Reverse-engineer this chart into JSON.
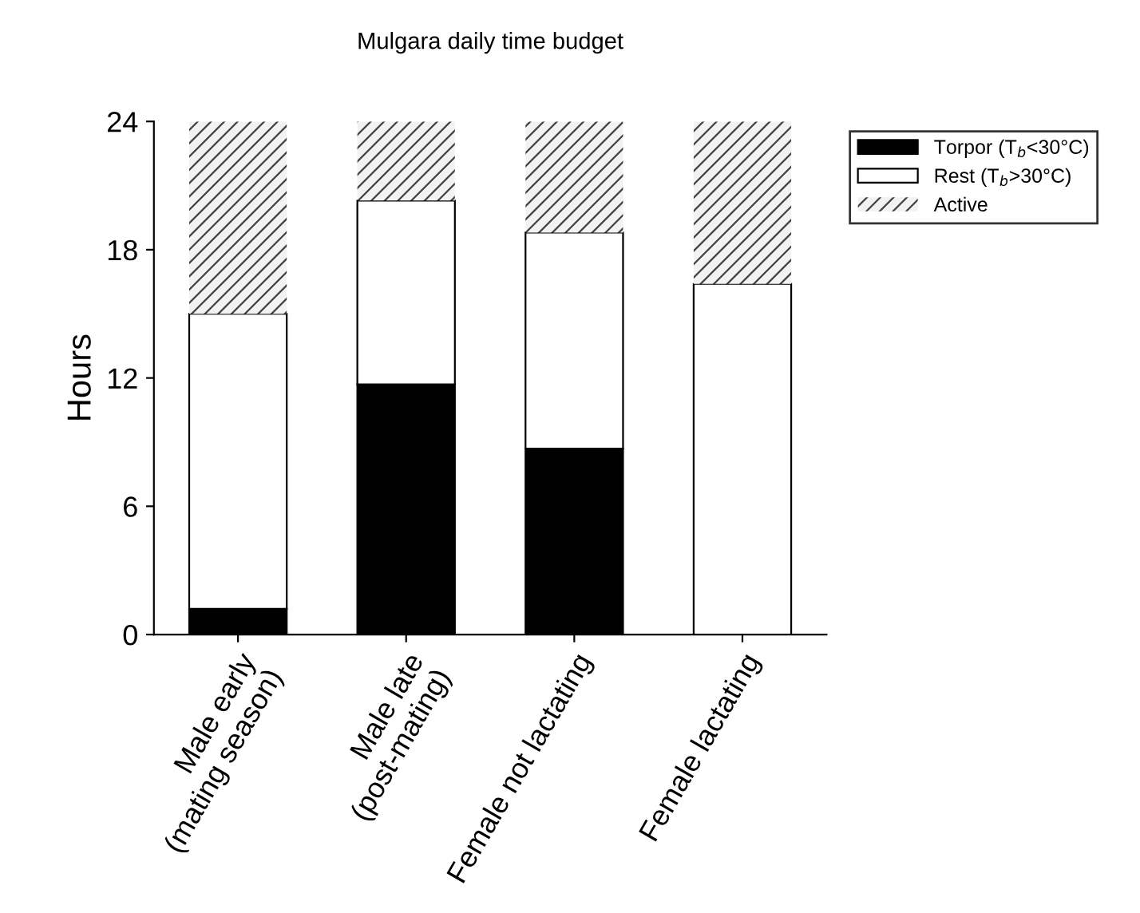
{
  "chart_data": {
    "type": "bar",
    "title": "Mulgara daily time budget",
    "ylabel": "Hours",
    "categories": [
      "Male early\n(mating season)",
      "Male late\n(post-mating)",
      "Female not lactating",
      "Female lactating"
    ],
    "stacked": true,
    "series": [
      {
        "name": "Torpor (T$_{b}$<30°C)",
        "color": "#000000",
        "values": [
          1.2,
          11.7,
          8.7,
          0
        ]
      },
      {
        "name": "Rest (T$_{b}$>30°C)",
        "color": "#ffffff",
        "values": [
          13.8,
          8.6,
          10.1,
          16.4
        ]
      },
      {
        "name": "Active",
        "color": "#f2f2f2",
        "values": [
          9.0,
          3.7,
          5.2,
          7.6
        ]
      }
    ],
    "ylim": [
      0,
      24
    ],
    "yticks": [
      0,
      6,
      12,
      18,
      24
    ],
    "grid": false,
    "legend": "top right"
  }
}
